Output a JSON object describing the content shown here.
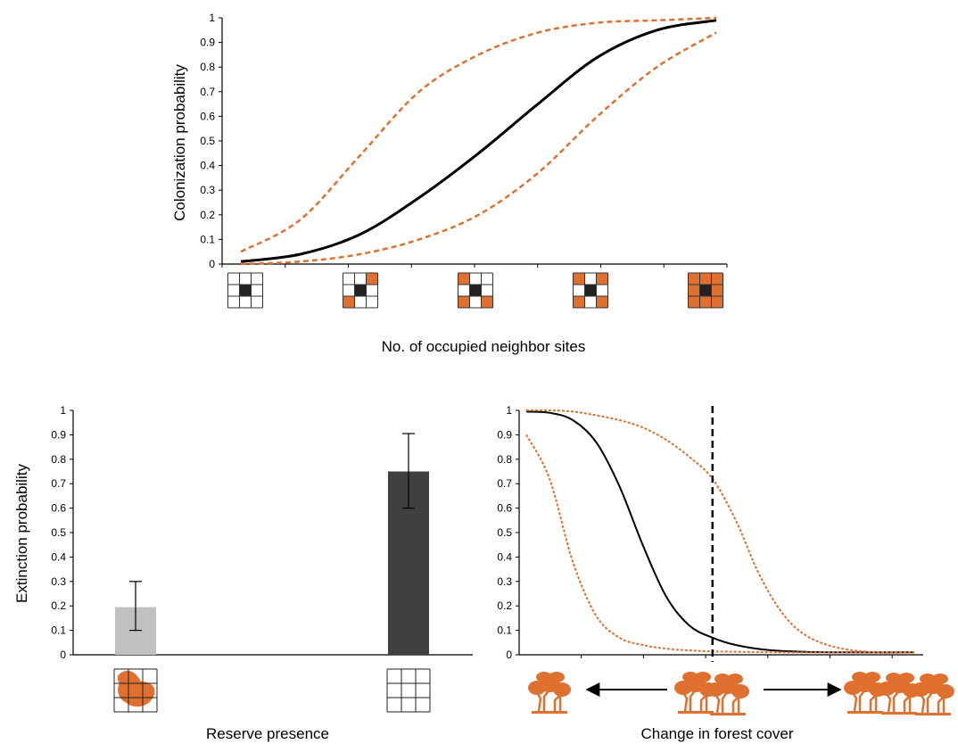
{
  "colors": {
    "accent": "#E07030",
    "black": "#000000",
    "bar_light": "#C0C0C0",
    "bar_dark": "#404040"
  },
  "icons": [
    "neighbor-grid-icon",
    "reserve-grid-icon",
    "forest-tree-icon",
    "arrow-left-icon",
    "arrow-right-icon"
  ],
  "chart_data": [
    {
      "type": "line",
      "ylabel": "Colonization probability",
      "xlabel": "No. of occupied neighbor sites",
      "ylim": [
        0,
        1
      ],
      "y_ticks": [
        "0",
        "0.1",
        "0.2",
        "0.3",
        "0.4",
        "0.5",
        "0.6",
        "0.7",
        "0.8",
        "0.9",
        "1"
      ],
      "x_categories": [
        0,
        2,
        4,
        6,
        8
      ],
      "neighbor_patterns": [
        [
          0,
          0,
          0,
          0,
          0,
          0,
          0,
          0
        ],
        [
          0,
          0,
          1,
          0,
          0,
          1,
          0,
          0
        ],
        [
          1,
          0,
          0,
          0,
          0,
          1,
          0,
          1
        ],
        [
          1,
          0,
          1,
          0,
          0,
          1,
          0,
          1
        ],
        [
          1,
          1,
          1,
          1,
          1,
          1,
          1,
          1
        ]
      ],
      "series": [
        {
          "role": "estimate",
          "style": "solid",
          "color": "#000000",
          "x": [
            0,
            1,
            2,
            3,
            4,
            5,
            6,
            7,
            8
          ],
          "y": [
            0.01,
            0.04,
            0.12,
            0.27,
            0.45,
            0.65,
            0.84,
            0.95,
            0.99
          ]
        },
        {
          "role": "upper",
          "style": "dashed",
          "color": "#E07030",
          "x": [
            0,
            1,
            2,
            3,
            4,
            5,
            6,
            7,
            8
          ],
          "y": [
            0.05,
            0.18,
            0.44,
            0.7,
            0.85,
            0.94,
            0.98,
            0.99,
            1.0
          ]
        },
        {
          "role": "lower",
          "style": "dashed",
          "color": "#E07030",
          "x": [
            0,
            1,
            2,
            3,
            4,
            5,
            6,
            7,
            8
          ],
          "y": [
            0.0,
            0.01,
            0.04,
            0.1,
            0.2,
            0.37,
            0.6,
            0.8,
            0.94
          ]
        }
      ],
      "grid": false,
      "legend": "none"
    },
    {
      "type": "bar",
      "ylabel": "Extinction probability",
      "xlabel": "Reserve presence",
      "ylim": [
        0,
        1
      ],
      "y_ticks": [
        "0",
        "0.1",
        "0.2",
        "0.3",
        "0.4",
        "0.5",
        "0.6",
        "0.7",
        "0.8",
        "0.9",
        "1"
      ],
      "bars": [
        {
          "value": 0.195,
          "err_low": 0.1,
          "err_high": 0.3,
          "color": "#C0C0C0",
          "icon": "reserve-grid-icon"
        },
        {
          "value": 0.75,
          "err_low": 0.6,
          "err_high": 0.905,
          "color": "#404040",
          "icon": "plain-grid-icon"
        }
      ],
      "grid": false,
      "legend": "none"
    },
    {
      "type": "line",
      "ylabel": "",
      "xlabel": "Change in forest cover",
      "ylim": [
        0,
        1
      ],
      "y_ticks": [
        "0",
        "0.1",
        "0.2",
        "0.3",
        "0.4",
        "0.5",
        "0.6",
        "0.7",
        "0.8",
        "0.9",
        "1"
      ],
      "vline_x": 0.48,
      "series": [
        {
          "role": "estimate",
          "style": "solid",
          "color": "#000000",
          "x": [
            0,
            0.06,
            0.12,
            0.18,
            0.24,
            0.3,
            0.36,
            0.42,
            0.48,
            0.54,
            0.62,
            0.72,
            0.84,
            1.0
          ],
          "y": [
            0.995,
            0.99,
            0.96,
            0.87,
            0.69,
            0.45,
            0.24,
            0.12,
            0.07,
            0.04,
            0.02,
            0.012,
            0.01,
            0.01
          ]
        },
        {
          "role": "upper",
          "style": "dashed",
          "color": "#E07030",
          "x": [
            0,
            0.06,
            0.12,
            0.18,
            0.24,
            0.3,
            0.36,
            0.42,
            0.48,
            0.54,
            0.6,
            0.66,
            0.72,
            0.8,
            0.9,
            1.0
          ],
          "y": [
            1.0,
            1.0,
            0.995,
            0.98,
            0.96,
            0.93,
            0.88,
            0.81,
            0.72,
            0.55,
            0.33,
            0.17,
            0.08,
            0.03,
            0.01,
            0.01
          ]
        },
        {
          "role": "lower",
          "style": "dashed",
          "color": "#E07030",
          "x": [
            0,
            0.06,
            0.12,
            0.18,
            0.24,
            0.3,
            0.36,
            0.42,
            0.48,
            0.56,
            0.66,
            0.8,
            1.0
          ],
          "y": [
            0.9,
            0.72,
            0.38,
            0.16,
            0.07,
            0.04,
            0.025,
            0.018,
            0.014,
            0.012,
            0.01,
            0.01,
            0.01
          ]
        }
      ],
      "grid": false,
      "legend": "none"
    }
  ]
}
